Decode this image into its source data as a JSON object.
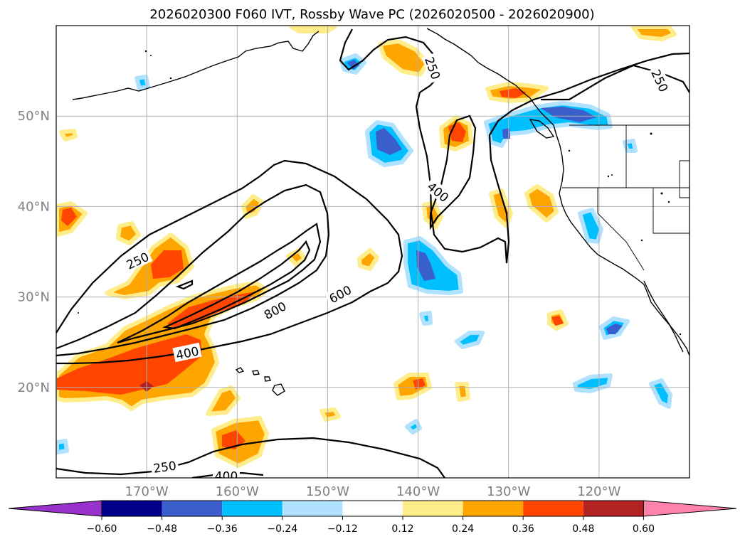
{
  "chart_data": {
    "type": "map",
    "title": "2026020300 F060 IVT, Rossby Wave PC (2026020500 - 2026020900)",
    "extent": {
      "lon_min": -180,
      "lon_max": -110,
      "lat_min": 10,
      "lat_max": 60
    },
    "lat_ticks": [
      {
        "value": 20,
        "label": "20°N"
      },
      {
        "value": 30,
        "label": "30°N"
      },
      {
        "value": 40,
        "label": "40°N"
      },
      {
        "value": 50,
        "label": "50°N"
      }
    ],
    "lon_ticks": [
      {
        "value": -170,
        "label": "170°W"
      },
      {
        "value": -160,
        "label": "160°W"
      },
      {
        "value": -150,
        "label": "150°W"
      },
      {
        "value": -140,
        "label": "140°W"
      },
      {
        "value": -130,
        "label": "130°W"
      },
      {
        "value": -120,
        "label": "120°W"
      }
    ],
    "grid": true,
    "contour_labels": [
      {
        "text": "250",
        "lon": -171,
        "lat": 34,
        "angle": -25
      },
      {
        "text": "250",
        "lon": -168,
        "lat": 11.2,
        "angle": -8
      },
      {
        "text": "250",
        "lon": -138.4,
        "lat": 55.3,
        "angle": 70
      },
      {
        "text": "250",
        "lon": -113.3,
        "lat": 53.9,
        "angle": 65
      },
      {
        "text": "400",
        "lon": -165.5,
        "lat": 23.8,
        "angle": -12
      },
      {
        "text": "400",
        "lon": -161.2,
        "lat": 10.2,
        "angle": 0
      },
      {
        "text": "400",
        "lon": -137.8,
        "lat": 41.6,
        "angle": 40
      },
      {
        "text": "600",
        "lon": -148.6,
        "lat": 30.3,
        "angle": -28
      },
      {
        "text": "800",
        "lon": -155.8,
        "lat": 28.5,
        "angle": -28
      }
    ],
    "colorbar": {
      "ticks": [
        "−0.60",
        "−0.48",
        "−0.36",
        "−0.24",
        "−0.12",
        "0.12",
        "0.24",
        "0.36",
        "0.48",
        "0.60"
      ],
      "colors": [
        "#9932CC",
        "#00008B",
        "#3A5FCD",
        "#00BFFF",
        "#B0E2FF",
        "#FFFFFF",
        "#FFEC8B",
        "#FFA500",
        "#FF4500",
        "#B22222",
        "#FF82AB"
      ]
    }
  }
}
